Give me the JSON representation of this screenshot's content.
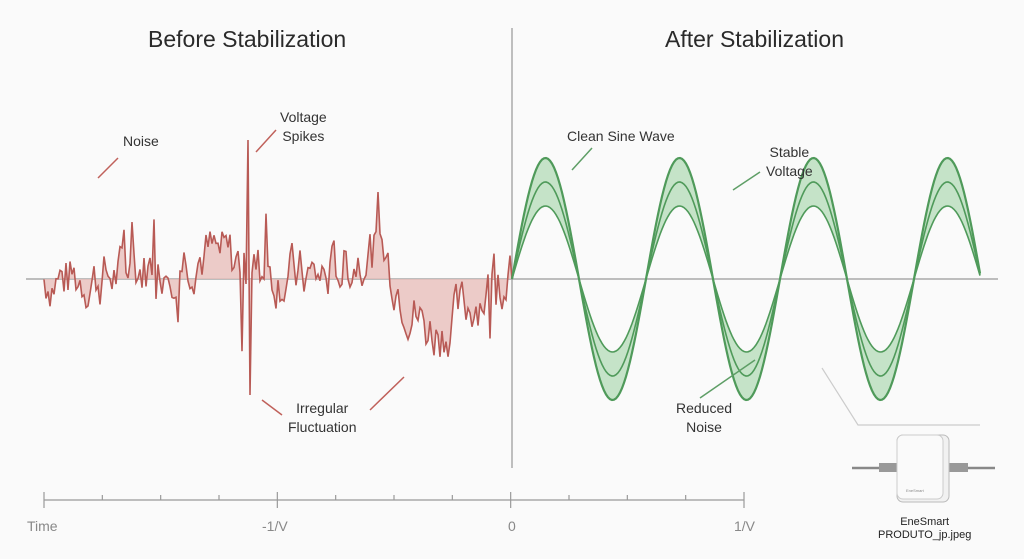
{
  "titles": {
    "before": "Before Stabilization",
    "after": "After Stabilization"
  },
  "annotations": {
    "noise": "Noise",
    "spikes": [
      "Voltage",
      "Spikes"
    ],
    "irregular": [
      "Irregular",
      "Fluctuation"
    ],
    "clean": "Clean Sine Wave",
    "stable": [
      "Stable",
      "Voltage"
    ],
    "reduced": [
      "Reduced",
      "Noise"
    ]
  },
  "axis": {
    "labels": [
      "Time",
      "-1/V",
      "0",
      "1/V"
    ]
  },
  "product": {
    "name": "EneSmart",
    "file": "PRODUTO_jp.jpeg",
    "brand": "EneSmart"
  },
  "colors": {
    "noise": "#b85a55",
    "noise_fill": "#e9bfbb",
    "sine": "#4f9a5a",
    "sine_fill": "#bfe0c2"
  }
}
